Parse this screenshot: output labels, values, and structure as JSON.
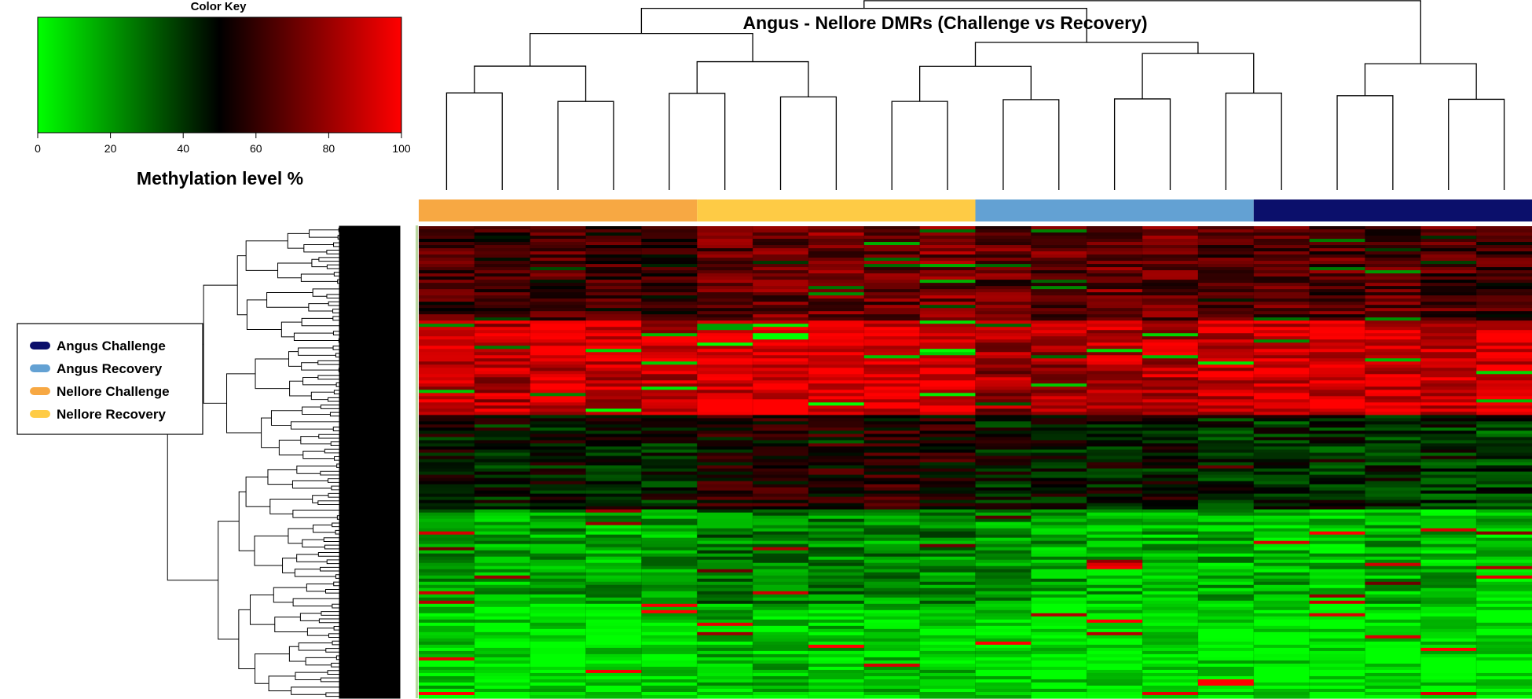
{
  "chart_data": {
    "type": "heatmap",
    "title": "Angus - Nellore DMRs (Challenge vs Recovery)",
    "color_key": {
      "title": "Color Key",
      "label": "Methylation level %",
      "ticks": [
        0,
        20,
        40,
        60,
        80,
        100
      ],
      "range": [
        0,
        100
      ],
      "colors": [
        "#00ff00",
        "#000000",
        "#ff0000"
      ]
    },
    "legend": {
      "placement": "left",
      "entries": [
        {
          "label": "Angus Challenge",
          "color": "#0b0f6b"
        },
        {
          "label": "Angus Recovery",
          "color": "#63a1d3"
        },
        {
          "label": "Nellore Challenge",
          "color": "#f7a843"
        },
        {
          "label": "Nellore Recovery",
          "color": "#fecb45"
        }
      ]
    },
    "column_groups": [
      {
        "group": "Nellore Challenge",
        "color": "#f7a843",
        "n_samples": 5
      },
      {
        "group": "Nellore Recovery",
        "color": "#fecb45",
        "n_samples": 5
      },
      {
        "group": "Angus Recovery",
        "color": "#63a1d3",
        "n_samples": 5
      },
      {
        "group": "Angus Challenge",
        "color": "#0b0f6b",
        "n_samples": 5
      }
    ],
    "row_blocks": [
      {
        "block": 1,
        "methylation_level": [
          62,
          60,
          63,
          61,
          58,
          70,
          71,
          72,
          70,
          73,
          68,
          70,
          71,
          69,
          67,
          68,
          66,
          67,
          64,
          62
        ]
      },
      {
        "block": 2,
        "methylation_level": [
          88,
          86,
          90,
          89,
          87,
          92,
          93,
          94,
          93,
          95,
          80,
          82,
          85,
          86,
          88,
          92,
          93,
          91,
          90,
          92
        ]
      },
      {
        "block": 3,
        "methylation_level": [
          48,
          46,
          47,
          45,
          44,
          54,
          56,
          55,
          57,
          55,
          46,
          45,
          47,
          44,
          43,
          40,
          41,
          42,
          40,
          38
        ]
      },
      {
        "block": 4,
        "methylation_level": [
          20,
          18,
          19,
          17,
          18,
          26,
          24,
          25,
          22,
          24,
          20,
          17,
          16,
          15,
          16,
          14,
          13,
          15,
          14,
          12
        ]
      },
      {
        "block": 5,
        "methylation_level": [
          8,
          6,
          6,
          5,
          7,
          12,
          11,
          10,
          9,
          10,
          7,
          5,
          5,
          4,
          5,
          4,
          3,
          4,
          4,
          3
        ]
      }
    ]
  }
}
